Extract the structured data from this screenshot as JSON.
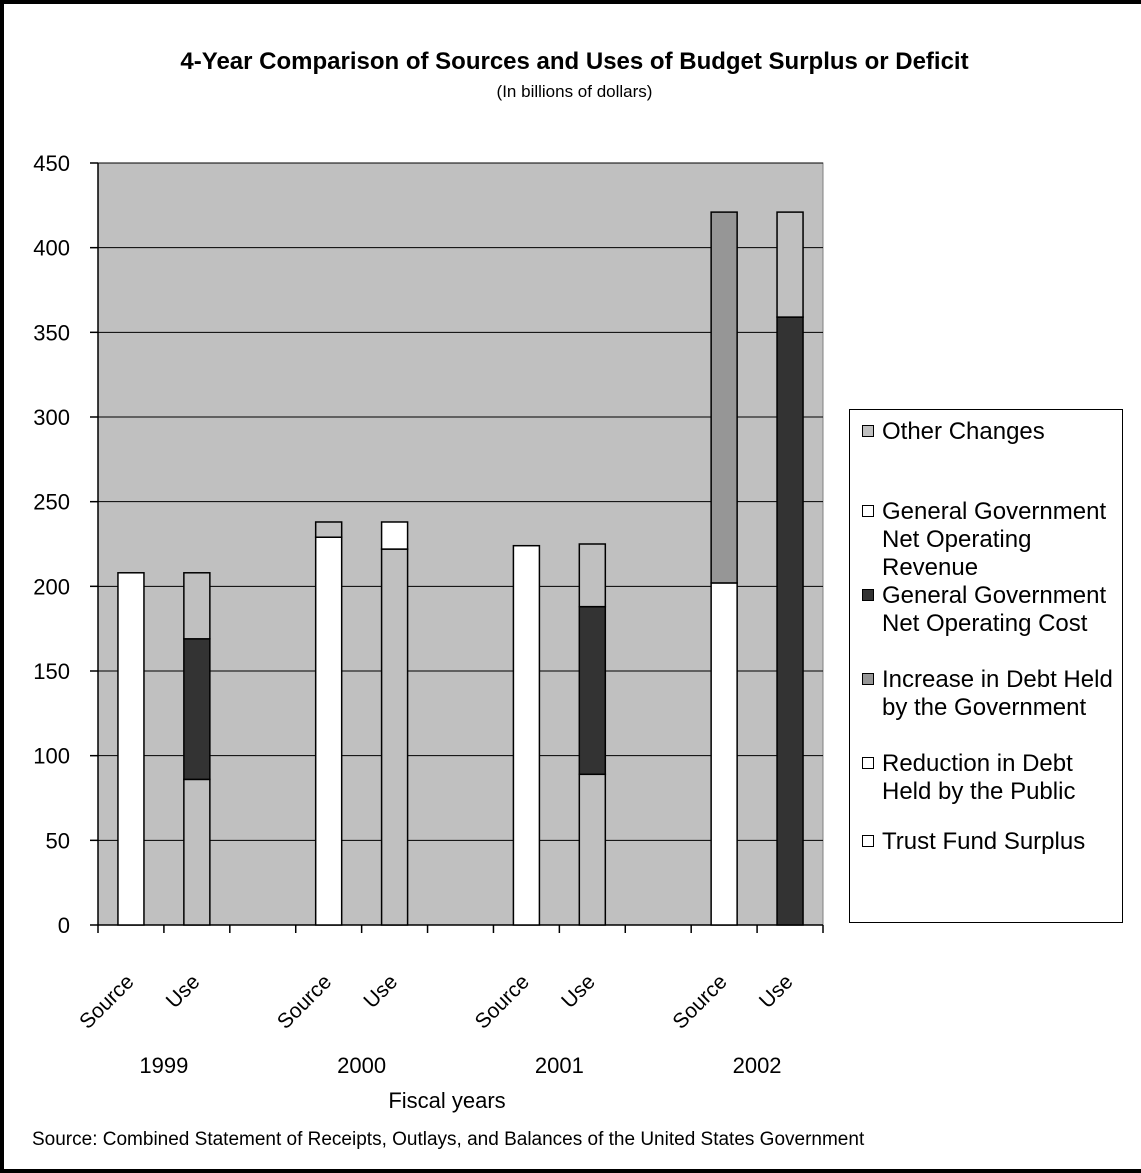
{
  "chart_data": {
    "type": "bar",
    "stacked": true,
    "title": "4-Year Comparison of Sources and Uses of Budget Surplus or Deficit",
    "subtitle": "(In billions of dollars)",
    "xlabel": "Fiscal years",
    "ylabel": "",
    "ylim": [
      0,
      450
    ],
    "yticks": [
      "0",
      "50",
      "100",
      "150",
      "200",
      "250",
      "300",
      "350",
      "400",
      "450"
    ],
    "grid": true,
    "plot_background": "#c0c0c0",
    "years": [
      "1999",
      "2000",
      "2001",
      "2002"
    ],
    "bar_labels": [
      "Source",
      "Use"
    ],
    "legend_position": "right",
    "series": [
      {
        "name": "Trust Fund Surplus",
        "color": "#ffffff",
        "values": [
          0,
          0,
          0,
          0,
          0,
          0,
          0,
          0
        ]
      },
      {
        "name": "Reduction in Debt Held by the Public",
        "color": "#ffffff",
        "values": [
          208,
          0,
          229,
          0,
          224,
          0,
          202,
          0
        ]
      },
      {
        "name": "Increase in Debt Held by the Government",
        "color": "#969696",
        "values": [
          0,
          0,
          0,
          0,
          0,
          0,
          219,
          0
        ]
      },
      {
        "name": "General Government Net Operating Cost",
        "color": "#333333",
        "values": [
          0,
          0,
          0,
          0,
          0,
          0,
          0,
          0
        ]
      },
      {
        "name": "General Government Net Operating Revenue",
        "color": "#ffffff",
        "values": [
          0,
          0,
          0,
          0,
          0,
          0,
          0,
          0
        ]
      },
      {
        "name": "Other Changes",
        "color": "#c0c0c0",
        "values": [
          0,
          0,
          0,
          0,
          0,
          0,
          0,
          0
        ]
      }
    ],
    "bars": [
      {
        "year": "1999",
        "kind": "Source",
        "segments": [
          {
            "series": "Reduction in Debt Held by the Public",
            "value": 208
          }
        ]
      },
      {
        "year": "1999",
        "kind": "Use",
        "segments": [
          {
            "series": "Other Changes",
            "value": 86
          },
          {
            "series": "General Government Net Operating Cost",
            "value": 83
          },
          {
            "series": "Other Changes",
            "value": 39
          }
        ]
      },
      {
        "year": "2000",
        "kind": "Source",
        "segments": [
          {
            "series": "Reduction in Debt Held by the Public",
            "value": 229
          },
          {
            "series": "Other Changes",
            "value": 9
          }
        ]
      },
      {
        "year": "2000",
        "kind": "Use",
        "segments": [
          {
            "series": "Other Changes",
            "value": 222
          },
          {
            "series": "General Government Net Operating Revenue",
            "value": 16
          }
        ]
      },
      {
        "year": "2001",
        "kind": "Source",
        "segments": [
          {
            "series": "Reduction in Debt Held by the Public",
            "value": 224
          }
        ]
      },
      {
        "year": "2001",
        "kind": "Use",
        "segments": [
          {
            "series": "Other Changes",
            "value": 89
          },
          {
            "series": "General Government Net Operating Cost",
            "value": 99
          },
          {
            "series": "Other Changes",
            "value": 37
          }
        ]
      },
      {
        "year": "2002",
        "kind": "Source",
        "segments": [
          {
            "series": "Reduction in Debt Held by the Public",
            "value": 202
          },
          {
            "series": "Increase in Debt Held by the Government",
            "value": 219
          }
        ]
      },
      {
        "year": "2002",
        "kind": "Use",
        "segments": [
          {
            "series": "General Government Net Operating Cost",
            "value": 359
          },
          {
            "series": "Other Changes",
            "value": 62
          }
        ]
      }
    ],
    "legend": [
      {
        "label": "Other Changes",
        "color": "#c0c0c0"
      },
      {
        "label": "General Government Net Operating Revenue",
        "color": "#ffffff"
      },
      {
        "label": "General Government Net Operating Cost",
        "color": "#333333"
      },
      {
        "label": "Increase in Debt Held by the Government",
        "color": "#969696"
      },
      {
        "label": "Reduction in Debt Held by the Public",
        "color": "#ffffff"
      },
      {
        "label": "Trust Fund Surplus",
        "color": "#ffffff"
      }
    ]
  },
  "footer": {
    "source": "Source: Combined Statement of Receipts, Outlays, and Balances of the United States Government"
  }
}
